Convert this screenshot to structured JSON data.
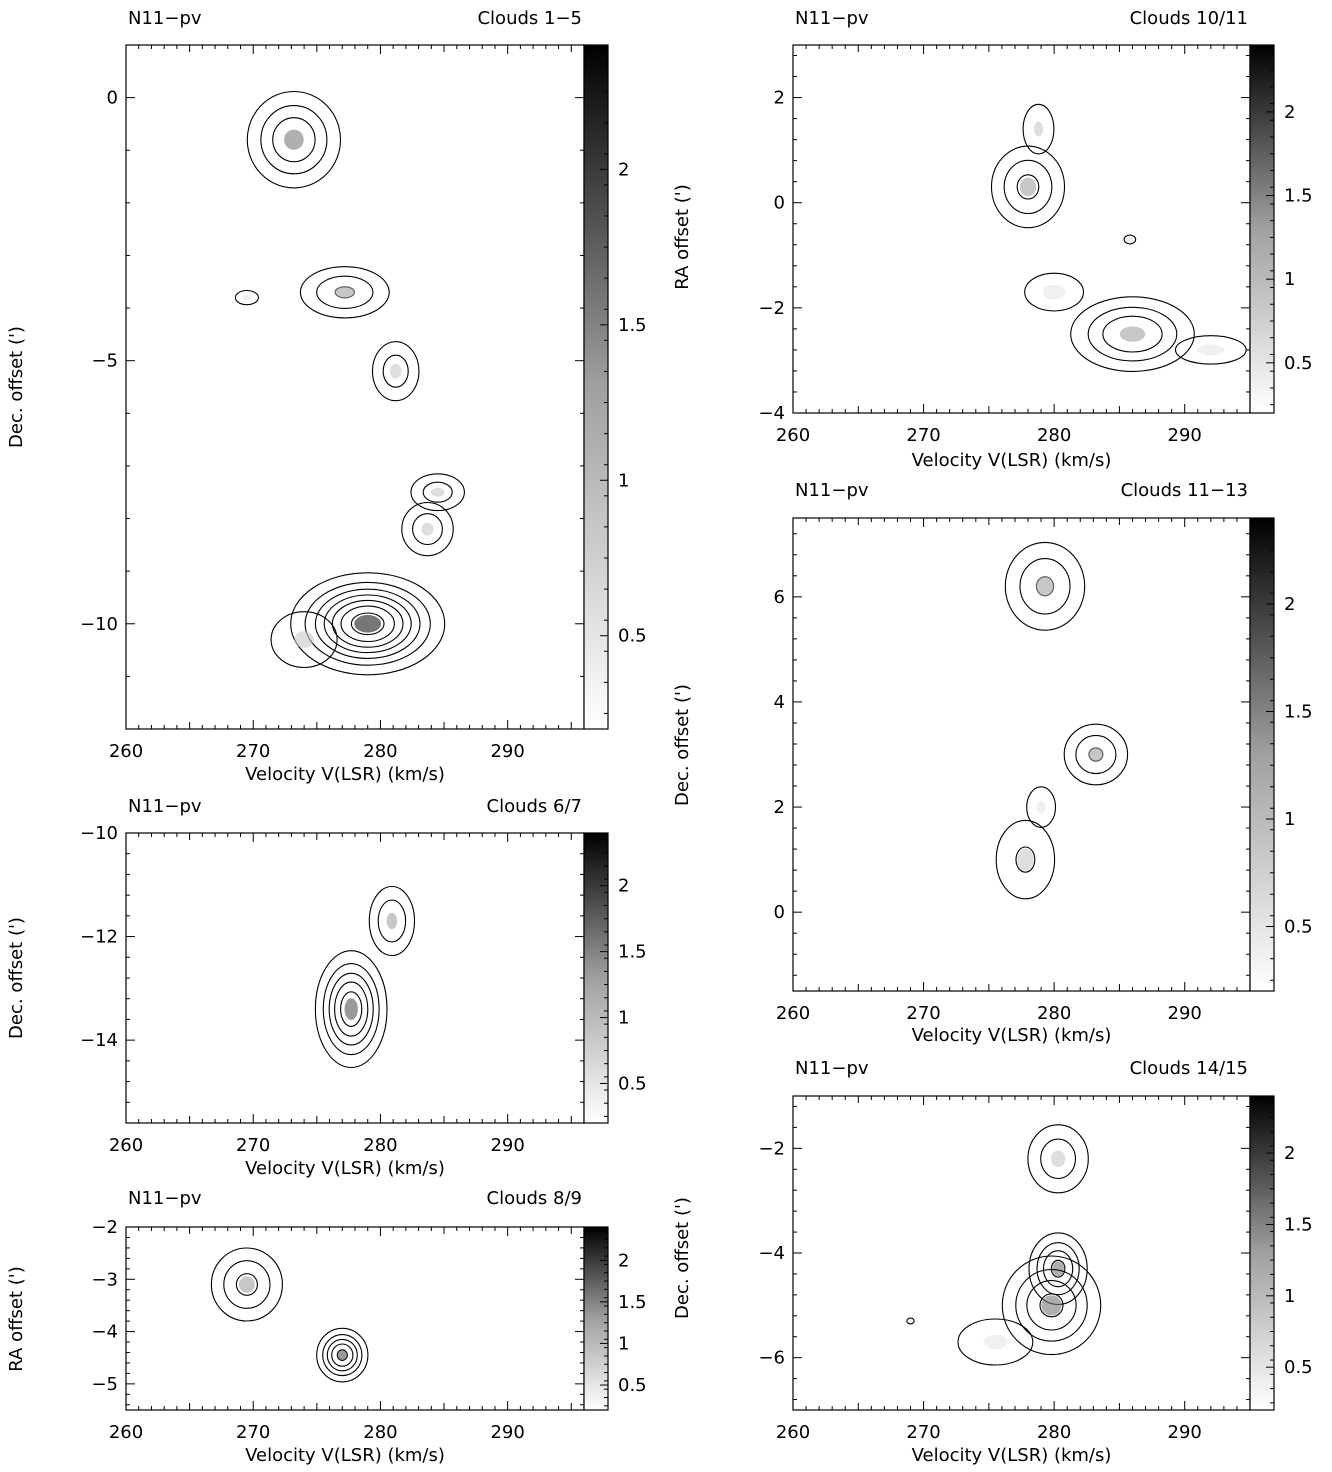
{
  "figure": {
    "shade_colors": [
      "#ffffff",
      "#e6e6e6",
      "#c8c8c8",
      "#a2a2a2",
      "#7a7a7a",
      "#555555",
      "#333333",
      "#1c1c1c"
    ]
  },
  "chart_data": [
    {
      "id": "p1",
      "type": "heatmap",
      "header_left": "N11−pv",
      "header_right": "Clouds 1−5",
      "xlabel": "Velocity V(LSR) (km/s)",
      "ylabel": "Dec. offset (')",
      "xlim": [
        260,
        296
      ],
      "ylim": [
        -12,
        1
      ],
      "xticks": [
        260,
        270,
        280,
        290
      ],
      "yticks": [
        -10,
        -5,
        0
      ],
      "colorbar_ticks": [
        0.5,
        1,
        1.5,
        2
      ],
      "colorbar_range": [
        0.2,
        2.4
      ],
      "clouds": [
        {
          "x": 273.2,
          "y": -0.8,
          "sx": 2.2,
          "sy": 0.55,
          "peak": 1.2
        },
        {
          "x": 277.2,
          "y": -3.7,
          "sx": 2.3,
          "sy": 0.32,
          "peak": 0.95
        },
        {
          "x": 269.5,
          "y": -3.8,
          "sx": 1.0,
          "sy": 0.15,
          "peak": 0.45
        },
        {
          "x": 281.2,
          "y": -5.2,
          "sx": 1.3,
          "sy": 0.4,
          "peak": 0.8
        },
        {
          "x": 284.5,
          "y": -7.5,
          "sx": 1.5,
          "sy": 0.25,
          "peak": 0.8
        },
        {
          "x": 283.7,
          "y": -8.2,
          "sx": 1.4,
          "sy": 0.35,
          "peak": 0.85
        },
        {
          "x": 279.0,
          "y": -10.0,
          "sx": 3.0,
          "sy": 0.48,
          "peak": 2.3
        },
        {
          "x": 274.0,
          "y": -10.3,
          "sx": 2.2,
          "sy": 0.45,
          "peak": 0.6
        }
      ],
      "contour_levels": [
        0.3,
        0.6,
        0.9,
        1.2,
        1.5,
        1.8,
        2.1
      ]
    },
    {
      "id": "p2",
      "type": "heatmap",
      "header_left": "N11−pv",
      "header_right": "Clouds 6/7",
      "xlabel": "Velocity V(LSR) (km/s)",
      "ylabel": "Dec. offset (')",
      "xlim": [
        260,
        296
      ],
      "ylim": [
        -15.6,
        -10
      ],
      "xticks": [
        260,
        270,
        280,
        290
      ],
      "yticks": [
        -14,
        -12,
        -10
      ],
      "colorbar_ticks": [
        0.5,
        1,
        1.5,
        2
      ],
      "colorbar_range": [
        0.2,
        2.4
      ],
      "clouds": [
        {
          "x": 277.7,
          "y": -13.4,
          "sx": 1.5,
          "sy": 0.6,
          "peak": 1.75
        },
        {
          "x": 280.9,
          "y": -11.7,
          "sx": 1.2,
          "sy": 0.45,
          "peak": 0.9
        }
      ],
      "contour_levels": [
        0.3,
        0.6,
        0.9,
        1.2,
        1.5
      ]
    },
    {
      "id": "p3",
      "type": "heatmap",
      "header_left": "N11−pv",
      "header_right": "Clouds 8/9",
      "xlabel": "Velocity V(LSR) (km/s)",
      "ylabel": "RA offset (')",
      "xlim": [
        260,
        296
      ],
      "ylim": [
        -5.5,
        -2
      ],
      "xticks": [
        260,
        270,
        280,
        290
      ],
      "yticks": [
        -5,
        -4,
        -3,
        -2
      ],
      "colorbar_ticks": [
        0.5,
        1,
        1.5,
        2
      ],
      "colorbar_range": [
        0.2,
        2.4
      ],
      "clouds": [
        {
          "x": 269.5,
          "y": -3.1,
          "sx": 1.8,
          "sy": 0.45,
          "peak": 1.0
        },
        {
          "x": 277.0,
          "y": -4.45,
          "sx": 1.1,
          "sy": 0.28,
          "peak": 1.6
        }
      ],
      "contour_levels": [
        0.3,
        0.6,
        0.9,
        1.2,
        1.5
      ]
    },
    {
      "id": "p4",
      "type": "heatmap",
      "header_left": "N11−pv",
      "header_right": "Clouds 10/11",
      "xlabel": "Velocity V(LSR) (km/s)",
      "ylabel": "RA offset (')",
      "xlim": [
        260,
        295
      ],
      "ylim": [
        -4,
        3
      ],
      "xticks": [
        260,
        270,
        280,
        290
      ],
      "yticks": [
        -4,
        -2,
        0,
        2
      ],
      "colorbar_ticks": [
        0.5,
        1,
        1.5,
        2
      ],
      "colorbar_range": [
        0.2,
        2.4
      ],
      "clouds": [
        {
          "x": 278.0,
          "y": 0.3,
          "sx": 1.8,
          "sy": 0.5,
          "peak": 1.0
        },
        {
          "x": 278.8,
          "y": 1.4,
          "sx": 1.0,
          "sy": 0.4,
          "peak": 0.6
        },
        {
          "x": 285.8,
          "y": -0.7,
          "sx": 0.8,
          "sy": 0.15,
          "peak": 0.35
        },
        {
          "x": 286.0,
          "y": -2.5,
          "sx": 2.8,
          "sy": 0.42,
          "peak": 1.25
        },
        {
          "x": 292.0,
          "y": -2.8,
          "sx": 3.0,
          "sy": 0.3,
          "peak": 0.45
        },
        {
          "x": 280.0,
          "y": -1.7,
          "sx": 2.5,
          "sy": 0.4,
          "peak": 0.45
        }
      ],
      "contour_levels": [
        0.3,
        0.6,
        0.9
      ]
    },
    {
      "id": "p5",
      "type": "heatmap",
      "header_left": "N11−pv",
      "header_right": "Clouds 11−13",
      "xlabel": "Velocity V(LSR) (km/s)",
      "ylabel": "Dec. offset (')",
      "xlim": [
        260,
        295
      ],
      "ylim": [
        -1.5,
        7.5
      ],
      "xticks": [
        260,
        270,
        280,
        290
      ],
      "yticks": [
        0,
        2,
        4,
        6
      ],
      "colorbar_ticks": [
        0.5,
        1,
        1.5,
        2
      ],
      "colorbar_range": [
        0.2,
        2.4
      ],
      "clouds": [
        {
          "x": 279.3,
          "y": 6.2,
          "sx": 2.0,
          "sy": 0.55,
          "peak": 0.95
        },
        {
          "x": 283.2,
          "y": 3.0,
          "sx": 1.6,
          "sy": 0.38,
          "peak": 0.95
        },
        {
          "x": 277.8,
          "y": 1.0,
          "sx": 1.8,
          "sy": 0.6,
          "peak": 0.65
        },
        {
          "x": 279.0,
          "y": 2.0,
          "sx": 1.0,
          "sy": 0.35,
          "peak": 0.55
        }
      ],
      "contour_levels": [
        0.3,
        0.6,
        0.9
      ]
    },
    {
      "id": "p6",
      "type": "heatmap",
      "header_left": "N11−pv",
      "header_right": "Clouds 14/15",
      "xlabel": "Velocity V(LSR) (km/s)",
      "ylabel": "Dec. offset (')",
      "xlim": [
        260,
        295
      ],
      "ylim": [
        -7,
        -1
      ],
      "xticks": [
        260,
        270,
        280,
        290
      ],
      "yticks": [
        -6,
        -4,
        -2
      ],
      "colorbar_ticks": [
        0.5,
        1,
        1.5,
        2
      ],
      "colorbar_range": [
        0.2,
        2.4
      ],
      "clouds": [
        {
          "x": 280.3,
          "y": -2.2,
          "sx": 1.6,
          "sy": 0.45,
          "peak": 0.85
        },
        {
          "x": 280.3,
          "y": -4.3,
          "sx": 1.3,
          "sy": 0.4,
          "peak": 1.3
        },
        {
          "x": 279.8,
          "y": -5.0,
          "sx": 2.2,
          "sy": 0.55,
          "peak": 1.3
        },
        {
          "x": 275.5,
          "y": -5.7,
          "sx": 2.6,
          "sy": 0.4,
          "peak": 0.55
        },
        {
          "x": 269.0,
          "y": -5.3,
          "sx": 0.5,
          "sy": 0.1,
          "peak": 0.35
        }
      ],
      "contour_levels": [
        0.3,
        0.6,
        0.9,
        1.2
      ]
    }
  ]
}
